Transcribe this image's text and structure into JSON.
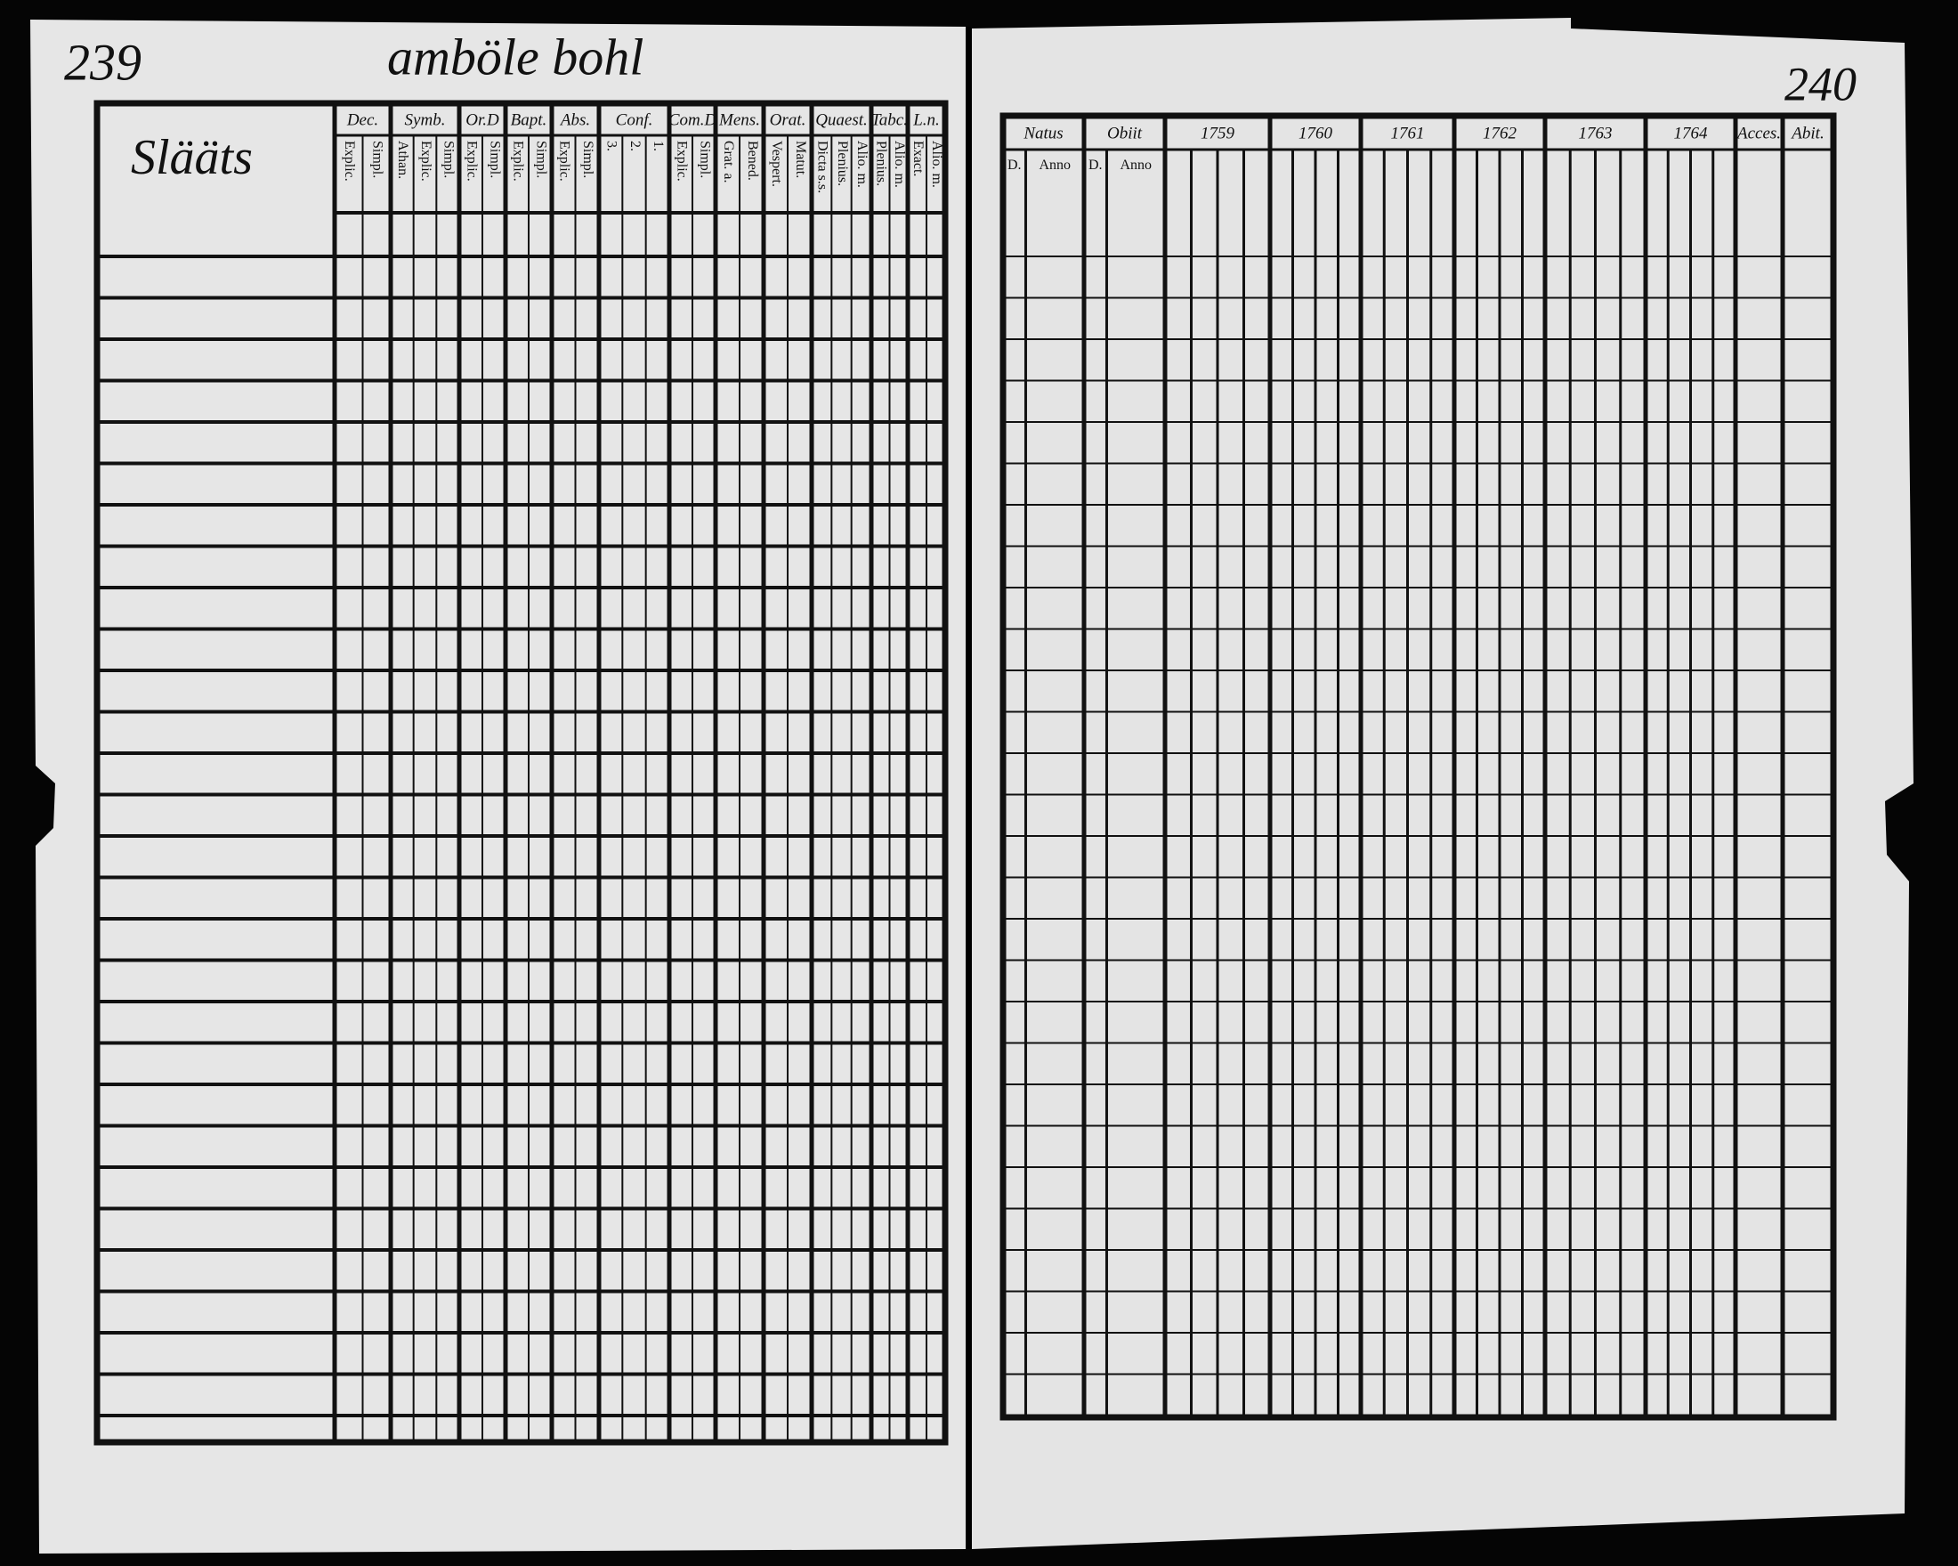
{
  "page_left": {
    "number": "239",
    "heading": "amböle bohl",
    "name_header": "Slääts",
    "columns": [
      {
        "label": "Dec.",
        "sub": [
          "Explic.",
          "Simpl."
        ]
      },
      {
        "label": "Symb.",
        "sub": [
          "Athan.",
          "Explic.",
          "Simpl."
        ]
      },
      {
        "label": "Or.D",
        "sub": [
          "Explic.",
          "Simpl."
        ]
      },
      {
        "label": "Bapt.",
        "sub": [
          "Explic.",
          "Simpl."
        ]
      },
      {
        "label": "Abs.",
        "sub": [
          "Explic.",
          "Simpl."
        ]
      },
      {
        "label": "Conf.",
        "sub": [
          "3.",
          "2.",
          "1."
        ]
      },
      {
        "label": "Com.D",
        "sub": [
          "Explic.",
          "Simpl."
        ]
      },
      {
        "label": "Mens.",
        "sub": [
          "Grat. a.",
          "Bened."
        ]
      },
      {
        "label": "Orat.",
        "sub": [
          "Vespert.",
          "Matut."
        ]
      },
      {
        "label": "Quaest.",
        "sub": [
          "Dicta s.s.",
          "Plenius.",
          "Alio. m."
        ]
      },
      {
        "label": "Tabc.",
        "sub": [
          "Plenius.",
          "Alio. m."
        ]
      },
      {
        "label": "L.n.",
        "sub": [
          "Exact.",
          "Alio. m."
        ]
      }
    ]
  },
  "page_right": {
    "number": "240",
    "columns": [
      {
        "label": "Natus",
        "sub": [
          "D.",
          "Anno"
        ]
      },
      {
        "label": "Obiit",
        "sub": [
          "D.",
          "Anno"
        ]
      },
      {
        "label": "1759"
      },
      {
        "label": "1760"
      },
      {
        "label": "1761"
      },
      {
        "label": "1762"
      },
      {
        "label": "1763"
      },
      {
        "label": "1764"
      },
      {
        "label": "Acces."
      },
      {
        "label": "Abit."
      }
    ]
  }
}
